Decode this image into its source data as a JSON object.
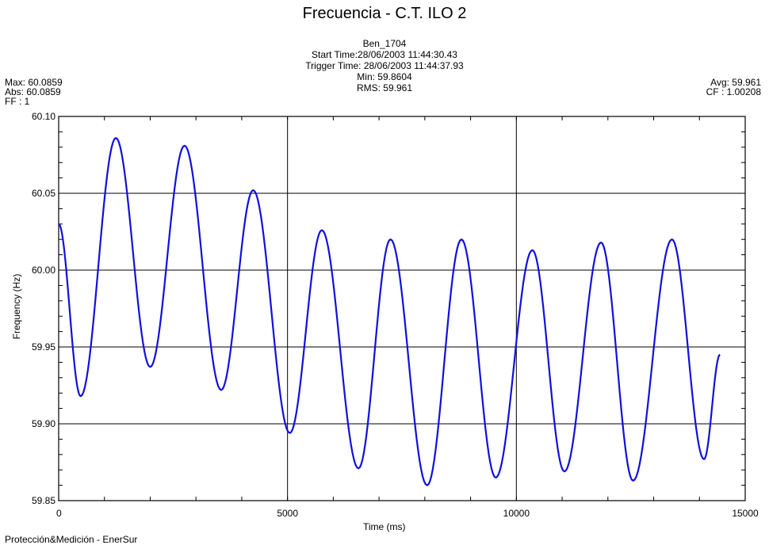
{
  "title": "Frecuencia - C.T. ILO 2",
  "header": {
    "name": "Ben_1704",
    "start_time": "Start Time:28/06/2003 11:44:30.43",
    "trigger_time": "Trigger Time: 28/06/2003 11:44:37.93",
    "min": "Min: 59.8604",
    "rms": "RMS: 59.961",
    "max": "Max: 60.0859",
    "abs": "Abs: 60.0859",
    "ff": "FF : 1",
    "avg": "Avg: 59.961",
    "cf": "CF : 1.00208"
  },
  "footer": "Protección&Medición - EnerSur",
  "chart_data": {
    "type": "line",
    "title": "Frecuencia - C.T. ILO 2",
    "xlabel": "Time (ms)",
    "ylabel": "Frequency (Hz)",
    "xlim": [
      0,
      15000
    ],
    "ylim": [
      59.85,
      60.1
    ],
    "xticks": [
      0,
      5000,
      10000,
      15000
    ],
    "yticks": [
      59.85,
      59.9,
      59.95,
      60.0,
      60.05,
      60.1
    ],
    "xtick_labels": [
      "0",
      "5000",
      "10000",
      "15000"
    ],
    "ytick_labels": [
      "59.85",
      "59.90",
      "59.95",
      "60.00",
      "60.05",
      "60.10"
    ],
    "grid": true,
    "series": [
      {
        "color": "#1010dd",
        "x": [
          0,
          480,
          1250,
          2000,
          2750,
          3550,
          4250,
          5050,
          5750,
          6550,
          7250,
          8050,
          8800,
          9550,
          10350,
          11050,
          11850,
          12550,
          13400,
          14100,
          14450
        ],
        "y": [
          60.03,
          59.918,
          60.086,
          59.937,
          60.081,
          59.922,
          60.052,
          59.894,
          60.026,
          59.871,
          60.02,
          59.86,
          60.02,
          59.865,
          60.013,
          59.869,
          60.018,
          59.863,
          60.02,
          59.877,
          59.945
        ]
      }
    ]
  }
}
